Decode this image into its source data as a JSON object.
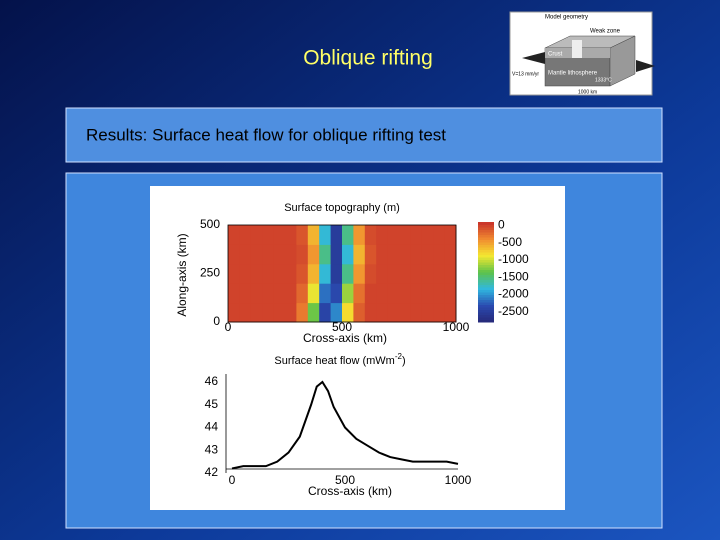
{
  "slide": {
    "title": "Oblique rifting",
    "results": "Results: Surface heat flow for oblique rifting test"
  },
  "inset": {
    "title": "Model geometry",
    "weak_zone": "Weak zone",
    "crust": "Crust",
    "mantle": "Mantle lithosphere",
    "temperature": "1333°C",
    "length": "1000 km",
    "velocity": "V=13 mm/yr"
  },
  "chart_data": [
    {
      "type": "heatmap",
      "title": "Surface topography (m)",
      "x_label": "Cross-axis (km)",
      "y_label": "Along-axis (km)",
      "x": [
        25,
        75,
        125,
        175,
        225,
        275,
        325,
        375,
        425,
        475,
        525,
        575,
        625,
        675,
        725,
        775,
        825,
        875,
        925,
        975
      ],
      "y": [
        50,
        150,
        250,
        350,
        450
      ],
      "values": [
        [
          0,
          0,
          0,
          0,
          0,
          0,
          -300,
          -1300,
          -2400,
          -2050,
          -800,
          -150,
          0,
          0,
          0,
          0,
          0,
          0,
          0,
          0
        ],
        [
          0,
          0,
          0,
          0,
          0,
          0,
          -200,
          -900,
          -2150,
          -2350,
          -1150,
          -250,
          0,
          0,
          0,
          0,
          0,
          0,
          0,
          0
        ],
        [
          0,
          0,
          0,
          0,
          0,
          0,
          -100,
          -600,
          -1800,
          -2500,
          -1550,
          -450,
          -50,
          0,
          0,
          0,
          0,
          0,
          0,
          0
        ],
        [
          0,
          0,
          0,
          0,
          0,
          0,
          -50,
          -450,
          -1550,
          -2500,
          -1800,
          -600,
          -100,
          0,
          0,
          0,
          0,
          0,
          0,
          0
        ],
        [
          0,
          0,
          0,
          0,
          0,
          0,
          -100,
          -600,
          -1800,
          -2500,
          -1550,
          -450,
          -50,
          0,
          0,
          0,
          0,
          0,
          0,
          0
        ]
      ],
      "xlim": [
        0,
        1000
      ],
      "ylim": [
        0,
        500
      ],
      "xticks": [
        0,
        500,
        1000
      ],
      "yticks": [
        0,
        250,
        500
      ],
      "clim": [
        -2800,
        100
      ],
      "colorbar_ticks": [
        0,
        -500,
        -1000,
        -1500,
        -2000,
        -2500
      ],
      "colormap": [
        "#262878",
        "#2a4ab0",
        "#30b8e0",
        "#5cc24a",
        "#f5e830",
        "#f08a30",
        "#c8302a"
      ]
    },
    {
      "type": "line",
      "title": [
        "Surface heat flow (mWm",
        "-2",
        ")"
      ],
      "x_label": "Cross-axis (km)",
      "color": "#000000",
      "x": [
        0,
        50,
        100,
        150,
        200,
        250,
        300,
        350,
        375,
        400,
        425,
        450,
        500,
        550,
        600,
        650,
        700,
        750,
        800,
        850,
        900,
        950,
        1000
      ],
      "values": [
        42.2,
        42.3,
        42.3,
        42.3,
        42.5,
        42.9,
        43.6,
        45.0,
        45.8,
        46.0,
        45.6,
        44.9,
        44.0,
        43.5,
        43.2,
        42.9,
        42.7,
        42.6,
        42.5,
        42.5,
        42.5,
        42.5,
        42.4
      ],
      "xlim": [
        0,
        1000
      ],
      "ylim": [
        42,
        46
      ],
      "xticks": [
        0,
        500,
        1000
      ],
      "yticks": [
        42,
        43,
        44,
        45,
        46
      ]
    }
  ]
}
